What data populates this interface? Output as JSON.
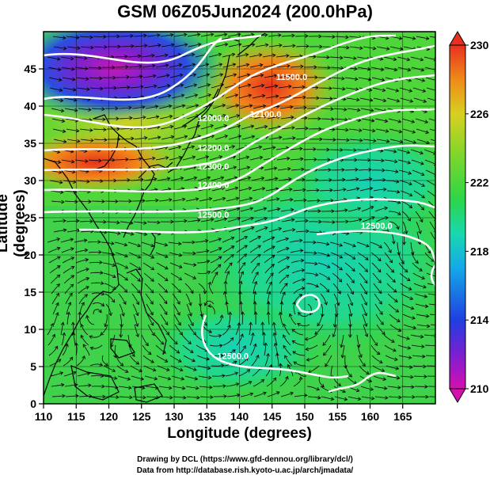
{
  "title": "GSM 06Z05Jun2024 (200.0hPa)",
  "x_axis": {
    "label": "Longitude (degrees)",
    "ticks": [
      110,
      115,
      120,
      125,
      130,
      135,
      140,
      145,
      150,
      155,
      160,
      165
    ],
    "range": [
      110,
      170
    ]
  },
  "y_axis": {
    "label": "Latitude  (degrees)",
    "ticks": [
      0,
      5,
      10,
      15,
      20,
      25,
      30,
      35,
      40,
      45
    ],
    "range": [
      0,
      50
    ]
  },
  "colorbar": {
    "ticks": [
      "230",
      "226",
      "222",
      "218",
      "214",
      "210"
    ],
    "min": 210,
    "max": 230,
    "colors": [
      "#d60fb0",
      "#7b1fd0",
      "#1f3fe0",
      "#14a8e8",
      "#18d8b0",
      "#2bd64a",
      "#7ed62a",
      "#d8d020",
      "#f08a18",
      "#e83020"
    ]
  },
  "contours": [
    {
      "label": "11500.0",
      "lat": 43.5,
      "lon": 148
    },
    {
      "label": "12000.0",
      "lat": 38,
      "lon": 136
    },
    {
      "label": "12100.0",
      "lat": 38.5,
      "lon": 144
    },
    {
      "label": "12200.0",
      "lat": 34,
      "lon": 136
    },
    {
      "label": "12300.0",
      "lat": 31.5,
      "lon": 136
    },
    {
      "label": "12400.0",
      "lat": 29,
      "lon": 136
    },
    {
      "label": "12500.0",
      "lat": 25,
      "lon": 136
    },
    {
      "label": "12500.0",
      "lat": 23.5,
      "lon": 161
    },
    {
      "label": "12500.0",
      "lat": 6,
      "lon": 139
    }
  ],
  "credits": [
    "Drawing by DCL (https://www.gfd-dennou.org/library/dcl/)",
    "Data from http://database.rish.kyoto-u.ac.jp/arch/jmadata/"
  ]
}
